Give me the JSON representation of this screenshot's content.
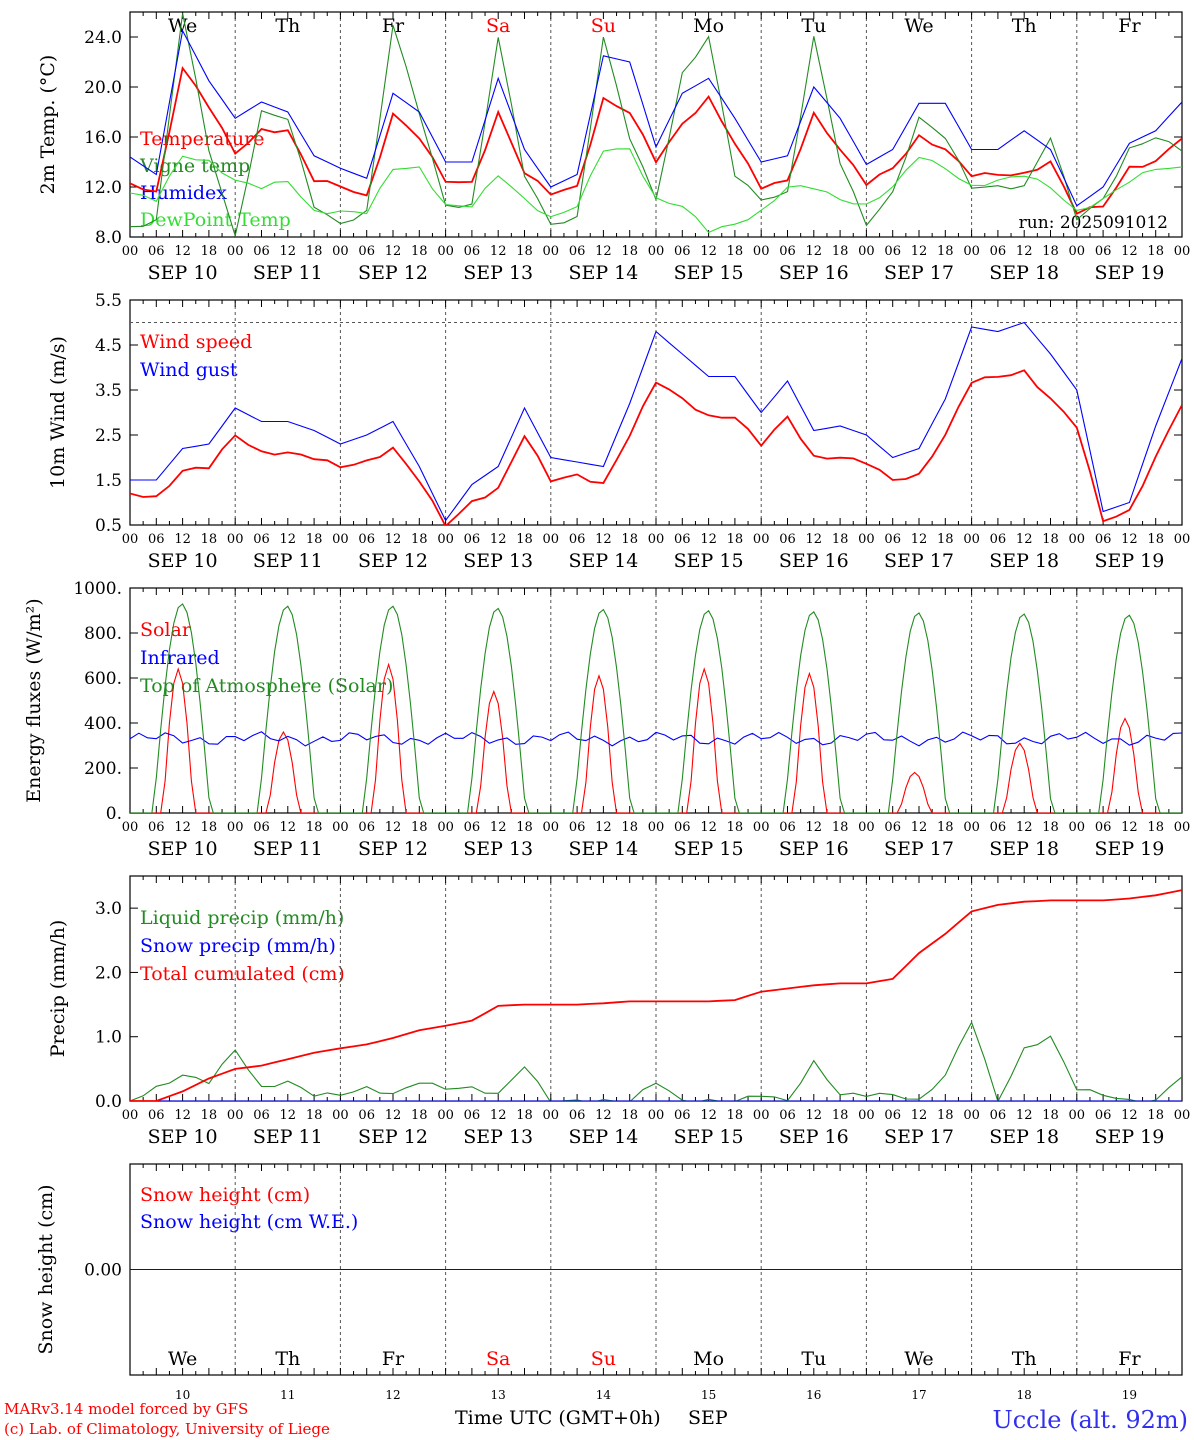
{
  "colors": {
    "red": "#ff0000",
    "green": "#228b22",
    "blue": "#0000ff",
    "lightgreen": "#33dd33",
    "black": "#000000",
    "gray": "#555555"
  },
  "days": [
    {
      "dow": "We",
      "date": "SEP 10",
      "num": "10",
      "weekend": false
    },
    {
      "dow": "Th",
      "date": "SEP 11",
      "num": "11",
      "weekend": false
    },
    {
      "dow": "Fr",
      "date": "SEP 12",
      "num": "12",
      "weekend": false
    },
    {
      "dow": "Sa",
      "date": "SEP 13",
      "num": "13",
      "weekend": true
    },
    {
      "dow": "Su",
      "date": "SEP 14",
      "num": "14",
      "weekend": true
    },
    {
      "dow": "Mo",
      "date": "SEP 15",
      "num": "15",
      "weekend": false
    },
    {
      "dow": "Tu",
      "date": "SEP 16",
      "num": "16",
      "weekend": false
    },
    {
      "dow": "We",
      "date": "SEP 17",
      "num": "17",
      "weekend": false
    },
    {
      "dow": "Th",
      "date": "SEP 18",
      "num": "18",
      "weekend": false
    },
    {
      "dow": "Fr",
      "date": "SEP 19",
      "num": "19",
      "weekend": false
    }
  ],
  "hour_labels": [
    "00",
    "06",
    "12",
    "18"
  ],
  "end_hour_label": "00",
  "footer": {
    "model": "MARv3.14 model forced by GFS",
    "lab": "(c) Lab. of Climatology, University of Liege",
    "xlabel": "Time UTC (GMT+0h)",
    "month": "SEP",
    "station": "Uccle (alt. 92m)"
  },
  "chart_data": [
    {
      "type": "line",
      "ylabel": "2m Temp. (°C)",
      "ylim": [
        8,
        26
      ],
      "yticks": [
        8.0,
        12.0,
        16.0,
        20.0,
        24.0
      ],
      "ytick_labels": [
        "8.0",
        "12.0",
        "16.0",
        "20.0",
        "24.0"
      ],
      "annotation": "run: 2025091012",
      "x_hours_anchor": [
        0,
        6,
        12,
        18,
        24,
        30,
        36,
        42,
        48,
        54,
        60,
        66,
        72,
        78,
        84,
        90,
        96,
        102,
        108,
        114,
        120,
        126,
        132,
        138,
        144,
        150,
        156,
        162,
        168,
        174,
        180,
        186,
        192,
        198,
        204,
        210,
        216,
        222,
        228,
        234,
        240
      ],
      "series": [
        {
          "name": "Temperature",
          "color": "red",
          "values": [
            12.3,
            11.5,
            21.5,
            18.5,
            14.7,
            16.5,
            16.5,
            12.6,
            12.1,
            11.2,
            17.8,
            16.0,
            12.5,
            12.3,
            17.9,
            13.2,
            11.5,
            12.0,
            19.0,
            18.0,
            14.1,
            17.0,
            19.1,
            15.5,
            12.0,
            12.5,
            17.8,
            15.0,
            12.3,
            13.5,
            16.0,
            15.0,
            13.0,
            13.0,
            13.0,
            14.0,
            10.0,
            10.5,
            13.5,
            14.0,
            16.0
          ]
        },
        {
          "name": "Vigne temp",
          "color": "green",
          "values": [
            8.7,
            9.3,
            26.0,
            15.0,
            8.0,
            18.0,
            17.5,
            10.5,
            9.0,
            10.0,
            25.0,
            18.0,
            10.5,
            10.5,
            24.0,
            13.0,
            9.0,
            9.5,
            24.0,
            16.0,
            11.0,
            21.0,
            24.0,
            13.0,
            11.0,
            11.5,
            24.0,
            14.0,
            9.0,
            11.5,
            17.5,
            16.0,
            12.0,
            12.0,
            12.0,
            16.0,
            9.5,
            11.0,
            15.0,
            16.0,
            15.0
          ]
        },
        {
          "name": "Humidex",
          "color": "blue",
          "values": [
            14.4,
            13.0,
            24.5,
            20.5,
            17.5,
            18.8,
            18.0,
            14.5,
            13.5,
            12.7,
            19.5,
            18.0,
            14.0,
            14.0,
            20.7,
            15.0,
            12.0,
            13.0,
            22.5,
            22.0,
            15.2,
            19.5,
            20.7,
            17.5,
            14.0,
            14.5,
            20.0,
            17.5,
            13.8,
            15.0,
            18.7,
            18.7,
            15.0,
            15.0,
            16.5,
            15.0,
            10.5,
            12.0,
            15.5,
            16.5,
            18.8
          ]
        },
        {
          "name": "DewPoint Temp",
          "color": "lightgreen",
          "values": [
            11.5,
            11.0,
            14.5,
            14.0,
            12.5,
            12.0,
            12.5,
            10.0,
            10.0,
            10.0,
            13.5,
            13.5,
            10.5,
            10.5,
            13.0,
            11.0,
            9.5,
            10.5,
            15.0,
            15.0,
            11.0,
            10.5,
            8.5,
            9.0,
            10.0,
            12.0,
            12.0,
            11.0,
            10.5,
            12.0,
            14.5,
            13.5,
            12.0,
            12.5,
            13.0,
            12.0,
            10.0,
            11.0,
            12.5,
            13.5,
            13.5
          ]
        }
      ]
    },
    {
      "type": "line",
      "ylabel": "10m Wind (m/s)",
      "ylim": [
        0.5,
        5.5
      ],
      "yticks": [
        0.5,
        1.5,
        2.5,
        3.5,
        4.5,
        5.5
      ],
      "ytick_labels": [
        "0.5",
        "1.5",
        "2.5",
        "3.5",
        "4.5",
        "5.5"
      ],
      "dashed_line": 5.0,
      "x_hours_anchor": [
        0,
        6,
        12,
        18,
        24,
        30,
        36,
        42,
        48,
        54,
        60,
        66,
        72,
        78,
        84,
        90,
        96,
        102,
        108,
        114,
        120,
        126,
        132,
        138,
        144,
        150,
        156,
        162,
        168,
        174,
        180,
        186,
        192,
        198,
        204,
        210,
        216,
        222,
        228,
        234,
        240
      ],
      "series": [
        {
          "name": "Wind speed",
          "color": "red",
          "values": [
            1.2,
            1.1,
            1.7,
            1.8,
            2.5,
            2.1,
            2.1,
            2.0,
            1.8,
            1.9,
            2.2,
            1.5,
            0.5,
            1.0,
            1.3,
            2.5,
            1.5,
            1.6,
            1.4,
            2.5,
            3.7,
            3.3,
            2.9,
            2.9,
            2.3,
            2.9,
            2.0,
            2.0,
            1.9,
            1.5,
            1.6,
            2.5,
            3.7,
            3.8,
            3.9,
            3.3,
            2.7,
            0.6,
            0.8,
            2.0,
            3.2
          ]
        },
        {
          "name": "Wind gust",
          "color": "blue",
          "values": [
            1.5,
            1.5,
            2.2,
            2.3,
            3.1,
            2.8,
            2.8,
            2.6,
            2.3,
            2.5,
            2.8,
            1.8,
            0.6,
            1.4,
            1.8,
            3.1,
            2.0,
            1.9,
            1.8,
            3.2,
            4.8,
            4.3,
            3.8,
            3.8,
            3.0,
            3.7,
            2.6,
            2.7,
            2.5,
            2.0,
            2.2,
            3.3,
            4.9,
            4.8,
            5.0,
            4.3,
            3.5,
            0.8,
            1.0,
            2.7,
            4.2
          ]
        }
      ]
    },
    {
      "type": "line",
      "ylabel": "Energy fluxes (W/m²)",
      "ylim": [
        0,
        1000
      ],
      "yticks": [
        0,
        200,
        400,
        600,
        800,
        1000
      ],
      "ytick_labels": [
        "0.",
        "200.",
        "400.",
        "600.",
        "800.",
        "1000."
      ],
      "series": [
        {
          "name": "Solar",
          "color": "red",
          "peaks": [
            640,
            360,
            660,
            540,
            610,
            640,
            620,
            180,
            310,
            420
          ],
          "peak_hour": 11,
          "width_hours": 7
        },
        {
          "name": "Infrared",
          "color": "blue",
          "mean": 330
        },
        {
          "name": "Top of Atmosphere (Solar)",
          "color": "green",
          "peaks": [
            930,
            920,
            920,
            910,
            905,
            900,
            895,
            890,
            885,
            880
          ],
          "peak_hour": 11.8,
          "width_hours": 13
        }
      ]
    },
    {
      "type": "line",
      "ylabel": "Precip (mm/h)",
      "ylim": [
        0,
        3.5
      ],
      "yticks": [
        0.0,
        1.0,
        2.0,
        3.0
      ],
      "ytick_labels": [
        "0.0",
        "1.0",
        "2.0",
        "3.0"
      ],
      "x_hours_anchor": [
        0,
        6,
        12,
        18,
        24,
        30,
        36,
        42,
        48,
        54,
        60,
        66,
        72,
        78,
        84,
        90,
        96,
        102,
        108,
        114,
        120,
        126,
        132,
        138,
        144,
        150,
        156,
        162,
        168,
        174,
        180,
        186,
        192,
        198,
        204,
        210,
        216,
        222,
        228,
        234,
        240
      ],
      "series": [
        {
          "name": "Liquid precip (mm/h)",
          "color": "green",
          "values": [
            0,
            0.2,
            0.4,
            0.3,
            0.8,
            0.2,
            0.3,
            0.1,
            0.1,
            0.2,
            0.1,
            0.3,
            0.2,
            0.2,
            0.1,
            0.55,
            0,
            0,
            0,
            0,
            0.3,
            0,
            0,
            0,
            0.1,
            0,
            0.6,
            0.1,
            0.1,
            0.1,
            0,
            0.4,
            1.25,
            0,
            0.8,
            1.0,
            0.2,
            0.1,
            0,
            0,
            0.4
          ]
        },
        {
          "name": "Snow precip (mm/h)",
          "color": "blue",
          "values": [
            0,
            0,
            0,
            0,
            0,
            0,
            0,
            0,
            0,
            0,
            0,
            0,
            0,
            0,
            0,
            0,
            0,
            0,
            0,
            0,
            0,
            0,
            0,
            0,
            0,
            0,
            0,
            0,
            0,
            0,
            0,
            0,
            0,
            0,
            0,
            0,
            0,
            0,
            0,
            0,
            0
          ]
        },
        {
          "name": "Total cumulated (cm)",
          "color": "red",
          "values": [
            0,
            0,
            0.15,
            0.35,
            0.5,
            0.55,
            0.65,
            0.75,
            0.82,
            0.88,
            0.98,
            1.1,
            1.17,
            1.25,
            1.48,
            1.5,
            1.5,
            1.5,
            1.52,
            1.55,
            1.55,
            1.55,
            1.55,
            1.57,
            1.7,
            1.75,
            1.8,
            1.83,
            1.83,
            1.9,
            2.3,
            2.6,
            2.95,
            3.05,
            3.1,
            3.12,
            3.12,
            3.12,
            3.15,
            3.2,
            3.28
          ]
        }
      ]
    },
    {
      "type": "line",
      "ylabel": "Snow height (cm)",
      "ylim": [
        -1,
        1
      ],
      "yticks": [
        0.0
      ],
      "ytick_labels": [
        "0.00"
      ],
      "series": [
        {
          "name": "Snow height (cm)",
          "color": "red",
          "values": [
            0,
            0
          ]
        },
        {
          "name": "Snow height (cm W.E.)",
          "color": "blue",
          "values": [
            0,
            0
          ]
        }
      ]
    }
  ]
}
